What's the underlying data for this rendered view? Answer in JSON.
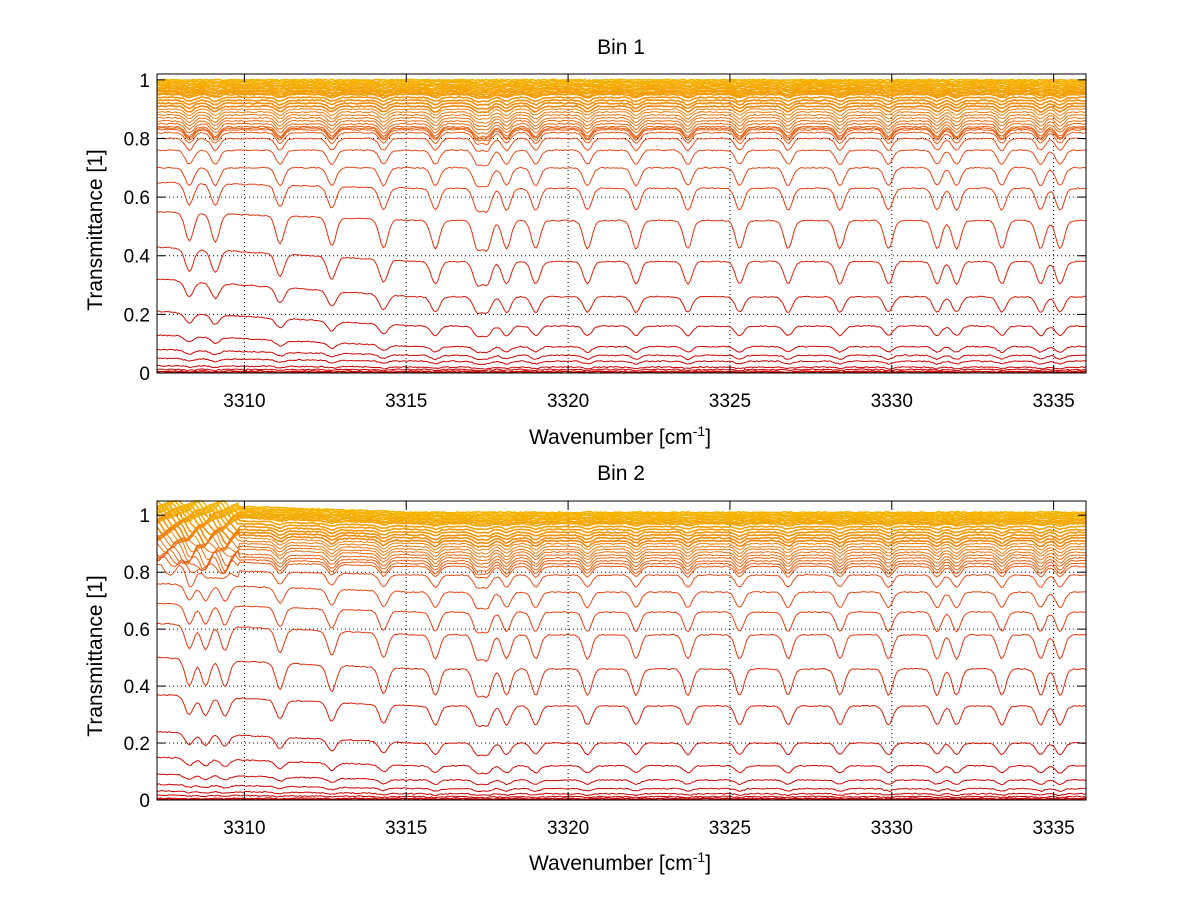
{
  "chart_data": [
    {
      "type": "line",
      "title": "Bin 1",
      "xlabel": "Wavenumber [cm",
      "xlabel_sup": "-1",
      "xlabel_end": "]",
      "ylabel": "Transmittance [1]",
      "xlim": [
        3307.3,
        3336.0
      ],
      "ylim": [
        0,
        1.02
      ],
      "xticks": [
        3310,
        3315,
        3320,
        3325,
        3330,
        3335
      ],
      "xtick_labels": [
        "3310",
        "3315",
        "3320",
        "3325",
        "3330",
        "3335"
      ],
      "yticks": [
        0,
        0.2,
        0.4,
        0.6,
        0.8,
        1
      ],
      "ytick_labels": [
        "0",
        "0.2",
        "0.4",
        "0.6",
        "0.8",
        "1"
      ],
      "grid": "dotted",
      "absorption_lines": [
        3308.3,
        3309.1,
        3311.1,
        3312.7,
        3314.3,
        3315.9,
        3317.2,
        3317.5,
        3318.1,
        3319.0,
        3320.6,
        3322.1,
        3323.7,
        3325.3,
        3326.8,
        3328.4,
        3329.9,
        3331.4,
        3332.0,
        3333.4,
        3334.6,
        3335.2
      ],
      "series_baselines": [
        1.0,
        0.995,
        0.99,
        0.985,
        0.98,
        0.975,
        0.97,
        0.965,
        0.96,
        0.955,
        0.95,
        0.94,
        0.93,
        0.92,
        0.91,
        0.9,
        0.89,
        0.88,
        0.87,
        0.86,
        0.85,
        0.84,
        0.835,
        0.83,
        0.82,
        0.8,
        0.76,
        0.7,
        0.63,
        0.52,
        0.38,
        0.26,
        0.16,
        0.09,
        0.06,
        0.04,
        0.02,
        0.012,
        0.006,
        0.003
      ],
      "series_start_offsets": [
        0.0,
        0.0,
        0.0,
        0.0,
        0.0,
        0.0,
        0.0,
        0.0,
        0.0,
        0.0,
        0.0,
        0.0,
        0.0,
        0.0,
        0.0,
        0.0,
        0.0,
        0.0,
        0.0,
        0.0,
        0.0,
        0.0,
        0.0,
        0.0,
        0.0,
        0.0,
        0.0,
        0.0,
        0.02,
        0.03,
        0.05,
        0.06,
        0.05,
        0.04,
        0.02,
        0.01,
        0.005,
        0.0,
        0.0,
        0.0
      ]
    },
    {
      "type": "line",
      "title": "Bin 2",
      "xlabel": "Wavenumber [cm",
      "xlabel_sup": "-1",
      "xlabel_end": "]",
      "ylabel": "Transmittance [1]",
      "xlim": [
        3307.3,
        3336.0
      ],
      "ylim": [
        0,
        1.05
      ],
      "xticks": [
        3310,
        3315,
        3320,
        3325,
        3330,
        3335
      ],
      "xtick_labels": [
        "3310",
        "3315",
        "3320",
        "3325",
        "3330",
        "3335"
      ],
      "yticks": [
        0,
        0.2,
        0.4,
        0.6,
        0.8,
        1
      ],
      "ytick_labels": [
        "0",
        "0.2",
        "0.4",
        "0.6",
        "0.8",
        "1"
      ],
      "grid": "dotted",
      "absorption_lines": [
        3308.3,
        3308.8,
        3309.4,
        3311.1,
        3312.7,
        3314.3,
        3315.9,
        3317.2,
        3317.5,
        3318.1,
        3319.0,
        3320.6,
        3322.1,
        3323.7,
        3325.3,
        3326.8,
        3328.4,
        3329.9,
        3331.4,
        3332.0,
        3333.4,
        3334.6,
        3335.2
      ],
      "series_baselines": [
        1.01,
        1.005,
        1.0,
        0.995,
        0.99,
        0.985,
        0.98,
        0.975,
        0.97,
        0.96,
        0.95,
        0.94,
        0.93,
        0.92,
        0.91,
        0.9,
        0.89,
        0.88,
        0.87,
        0.86,
        0.85,
        0.84,
        0.83,
        0.82,
        0.79,
        0.73,
        0.66,
        0.58,
        0.46,
        0.33,
        0.2,
        0.12,
        0.07,
        0.04,
        0.022,
        0.012,
        0.006,
        0.003
      ],
      "series_start_offsets": [
        0.03,
        0.03,
        0.03,
        0.03,
        0.03,
        0.03,
        0.03,
        0.03,
        0.03,
        0.03,
        0.03,
        0.03,
        0.03,
        0.03,
        0.03,
        0.03,
        0.03,
        0.03,
        0.03,
        0.03,
        0.02,
        0.02,
        0.02,
        0.02,
        0.02,
        0.03,
        0.03,
        0.04,
        0.04,
        0.04,
        0.04,
        0.03,
        0.02,
        0.015,
        0.01,
        0.005,
        0.0,
        0.0
      ]
    }
  ],
  "colors": {
    "series_low": "#c80000",
    "series_mid": "#e6501a",
    "series_high": "#f5b400",
    "axis": "#000000",
    "grid": "#000000",
    "background": "#ffffff"
  }
}
